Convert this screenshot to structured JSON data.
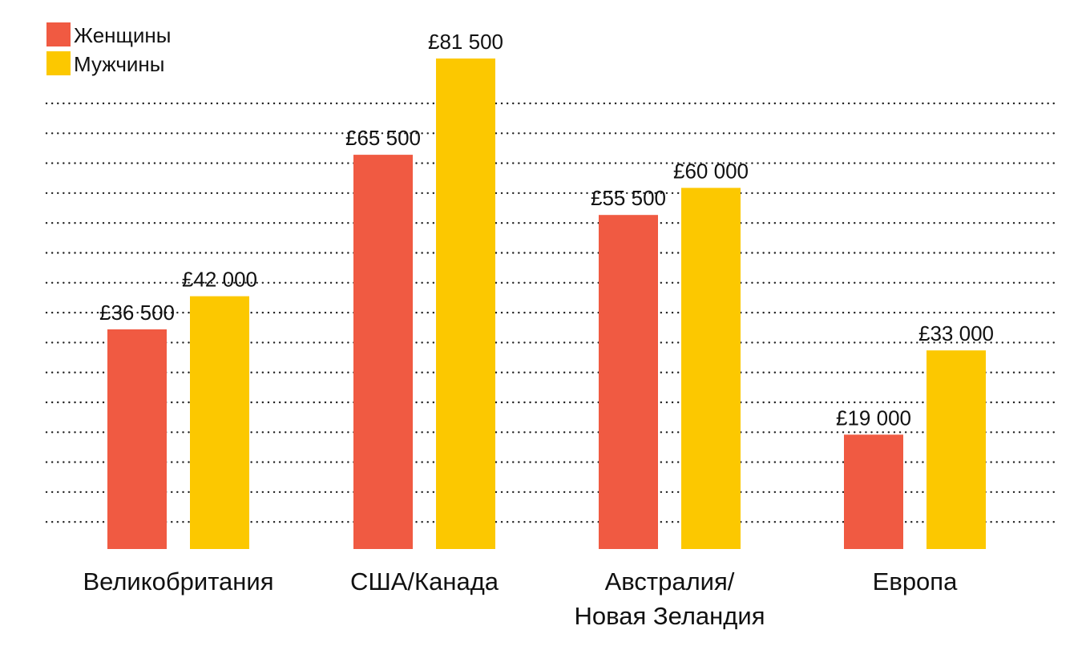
{
  "chart_data": {
    "type": "bar",
    "title": "",
    "xlabel": "",
    "ylabel": "",
    "categories": [
      [
        "Великобритания"
      ],
      [
        "США/Канада"
      ],
      [
        "Австралия/",
        "Новая Зеландия"
      ],
      [
        "Европа"
      ]
    ],
    "series": [
      {
        "name": "Женщины",
        "color": "#f05a42",
        "values": [
          36500,
          65500,
          55500,
          19000
        ],
        "labels": [
          "£36 500",
          "£65 500",
          "£55 500",
          "£19 000"
        ]
      },
      {
        "name": "Мужчины",
        "color": "#fcc800",
        "values": [
          42000,
          81500,
          60000,
          33000
        ],
        "labels": [
          "£42 000",
          "£81 500",
          "£60 000",
          "£33 000"
        ]
      }
    ],
    "ylim": [
      0,
      85000
    ],
    "grid": true,
    "grid_style": "dotted",
    "legend_position": "top-left"
  }
}
